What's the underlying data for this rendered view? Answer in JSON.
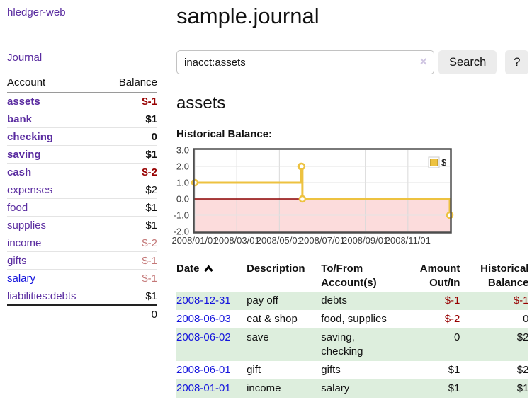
{
  "sidebar": {
    "brand": "hledger-web",
    "journal_link": "Journal",
    "accounts": {
      "headers": {
        "account": "Account",
        "balance": "Balance"
      },
      "rows": [
        {
          "name": "assets",
          "balance": "$-1"
        },
        {
          "name": "bank",
          "balance": "$1"
        },
        {
          "name": "checking",
          "balance": "0"
        },
        {
          "name": "saving",
          "balance": "$1"
        },
        {
          "name": "cash",
          "balance": "$-2"
        },
        {
          "name": "expenses",
          "balance": "$2"
        },
        {
          "name": "food",
          "balance": "$1"
        },
        {
          "name": "supplies",
          "balance": "$1"
        },
        {
          "name": "income",
          "balance": "$-2"
        },
        {
          "name": "gifts",
          "balance": "$-1"
        },
        {
          "name": "salary",
          "balance": "$-1"
        },
        {
          "name": "liabilities:debts",
          "balance": "$1"
        }
      ],
      "total": "0"
    }
  },
  "main": {
    "title": "sample.journal",
    "search": {
      "value": "inacct:assets",
      "clear_icon": "×",
      "search_button": "Search",
      "help_button": "?"
    },
    "account_heading": "assets",
    "chart_title": "Historical Balance:"
  },
  "chart_data": {
    "type": "line",
    "step": true,
    "title": "Historical Balance",
    "series": [
      {
        "name": "$",
        "color": "#edc240",
        "points": [
          [
            "2008-01-01",
            1
          ],
          [
            "2008-06-01",
            2
          ],
          [
            "2008-06-02",
            2
          ],
          [
            "2008-06-03",
            0
          ],
          [
            "2008-12-31",
            -1
          ]
        ]
      }
    ],
    "xlim": [
      "2008-01-01",
      "2008-12-31"
    ],
    "ylim": [
      -2,
      3
    ],
    "x_ticks": [
      "2008/01/01",
      "2008/03/01",
      "2008/05/01",
      "2008/07/01",
      "2008/09/01",
      "2008/11/01"
    ],
    "y_ticks": [
      "3.0",
      "2.0",
      "1.0",
      "0.0",
      "-1.0",
      "-2.0"
    ],
    "grid": true,
    "legend_position": "top-right",
    "negative_region_fill": "#fcdcdc",
    "zero_line_color": "#8b0000"
  },
  "register": {
    "headers": {
      "date": "Date",
      "description": "Description",
      "tofrom": "To/From Account(s)",
      "amount": "Amount Out/In",
      "balance": "Historical Balance"
    },
    "rows": [
      {
        "date": "2008-12-31",
        "description": "pay off",
        "tofrom": "debts",
        "amount": "$-1",
        "balance": "$-1"
      },
      {
        "date": "2008-06-03",
        "description": "eat & shop",
        "tofrom": "food, supplies",
        "amount": "$-2",
        "balance": "0"
      },
      {
        "date": "2008-06-02",
        "description": "save",
        "tofrom": "saving, checking",
        "amount": "0",
        "balance": "$2"
      },
      {
        "date": "2008-06-01",
        "description": "gift",
        "tofrom": "gifts",
        "amount": "$1",
        "balance": "$2"
      },
      {
        "date": "2008-01-01",
        "description": "income",
        "tofrom": "salary",
        "amount": "$1",
        "balance": "$1"
      }
    ]
  },
  "colors": {
    "purple_link": "#5a2ca0",
    "blue_link": "#1414dd",
    "negative_strong": "#970000",
    "negative_soft": "#c47878",
    "row_stripe_green": "#ddeedd",
    "chart_line_gold": "#edc240",
    "chart_negative_fill": "#fcdcdc",
    "chart_zero_line": "#8b0000",
    "button_background": "#ececec"
  }
}
